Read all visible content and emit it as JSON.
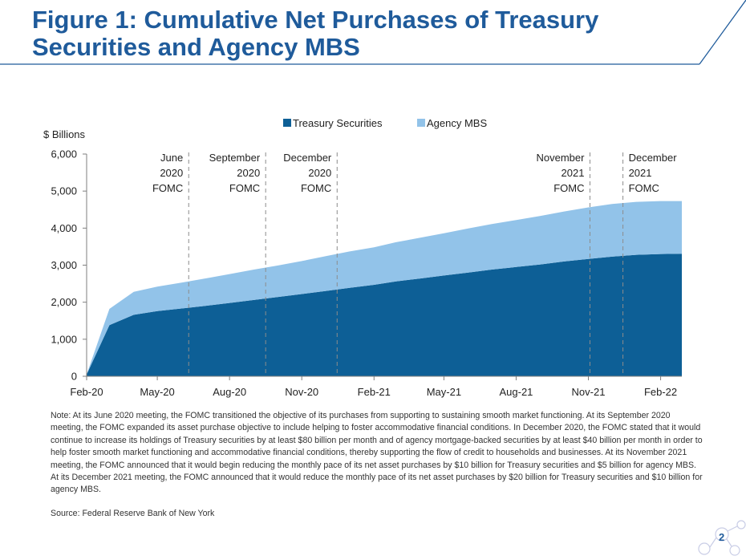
{
  "title": "Figure 1: Cumulative Net Purchases of Treasury Securities and Agency MBS",
  "page_number": "2",
  "note": "Note: At its June 2020 meeting, the FOMC transitioned the objective of its purchases from supporting to sustaining smooth market functioning. At its September 2020 meeting, the FOMC expanded its asset purchase objective to include helping to foster accommodative financial conditions. In December 2020, the FOMC stated that it would continue to increase its holdings of Treasury securities by at least $80 billion per month and of agency mortgage-backed securities by at least $40 billion per month in order to help foster smooth market functioning and accommodative financial conditions, thereby supporting the flow of credit to households and businesses. At its November 2021 meeting, the FOMC announced that it would begin reducing the monthly pace of its net asset purchases by $10 billion for Treasury securities and $5 billion for agency MBS. At its December 2021 meeting, the FOMC announced that it would reduce the monthly pace of its net asset purchases by $20 billion for Treasury securities and $10 billion for agency MBS.",
  "source": "Source: Federal Reserve Bank of New York",
  "colors": {
    "title": "#1f5b9b",
    "treasury": "#0d5f96",
    "mbs": "#92c3e9"
  },
  "chart_data": {
    "type": "area",
    "stacked": true,
    "ylabel": "$ Billions",
    "ylim": [
      0,
      6000
    ],
    "yticks": [
      0,
      1000,
      2000,
      3000,
      4000,
      5000,
      6000
    ],
    "ytick_labels": [
      "0",
      "1,000",
      "2,000",
      "3,000",
      "4,000",
      "5,000",
      "6,000"
    ],
    "xlim": [
      "2020-02-01",
      "2022-02-28"
    ],
    "xticks": [
      {
        "date": "2020-02-01",
        "label": "Feb-20"
      },
      {
        "date": "2020-05-01",
        "label": "May-20"
      },
      {
        "date": "2020-08-01",
        "label": "Aug-20"
      },
      {
        "date": "2020-11-01",
        "label": "Nov-20"
      },
      {
        "date": "2021-02-01",
        "label": "Feb-21"
      },
      {
        "date": "2021-05-01",
        "label": "May-21"
      },
      {
        "date": "2021-08-01",
        "label": "Aug-21"
      },
      {
        "date": "2021-11-01",
        "label": "Nov-21"
      },
      {
        "date": "2022-02-01",
        "label": "Feb-22"
      }
    ],
    "legend_position": "top-center",
    "grid": false,
    "x": [
      "2020-02-01",
      "2020-03-01",
      "2020-04-01",
      "2020-05-01",
      "2020-06-01",
      "2020-07-01",
      "2020-08-01",
      "2020-09-01",
      "2020-10-01",
      "2020-11-01",
      "2020-12-01",
      "2021-01-01",
      "2021-02-01",
      "2021-03-01",
      "2021-04-01",
      "2021-05-01",
      "2021-06-01",
      "2021-07-01",
      "2021-08-01",
      "2021-09-01",
      "2021-10-01",
      "2021-11-01",
      "2021-12-01",
      "2022-01-01",
      "2022-02-01",
      "2022-02-28"
    ],
    "series": [
      {
        "name": "Treasury Securities",
        "color": "#0d5f96",
        "values": [
          50,
          1380,
          1660,
          1760,
          1830,
          1900,
          1980,
          2060,
          2140,
          2220,
          2300,
          2390,
          2470,
          2560,
          2640,
          2720,
          2800,
          2880,
          2950,
          3020,
          3100,
          3170,
          3230,
          3280,
          3300,
          3310
        ]
      },
      {
        "name": "Agency MBS",
        "color": "#92c3e9",
        "values": [
          0,
          440,
          620,
          660,
          700,
          740,
          780,
          820,
          850,
          890,
          940,
          980,
          1010,
          1060,
          1100,
          1140,
          1190,
          1230,
          1270,
          1310,
          1350,
          1390,
          1420,
          1430,
          1430,
          1420
        ]
      }
    ],
    "annotations": [
      {
        "date": "2020-06-10",
        "lines": [
          "June",
          "2020",
          "FOMC"
        ],
        "align": "left"
      },
      {
        "date": "2020-09-16",
        "lines": [
          "September",
          "2020",
          "FOMC"
        ],
        "align": "left"
      },
      {
        "date": "2020-12-16",
        "lines": [
          "December",
          "2020",
          "FOMC"
        ],
        "align": "left"
      },
      {
        "date": "2021-11-03",
        "lines": [
          "November",
          "2021",
          "FOMC"
        ],
        "align": "left"
      },
      {
        "date": "2021-12-15",
        "lines": [
          "December",
          "2021",
          "FOMC"
        ],
        "align": "right"
      }
    ]
  }
}
